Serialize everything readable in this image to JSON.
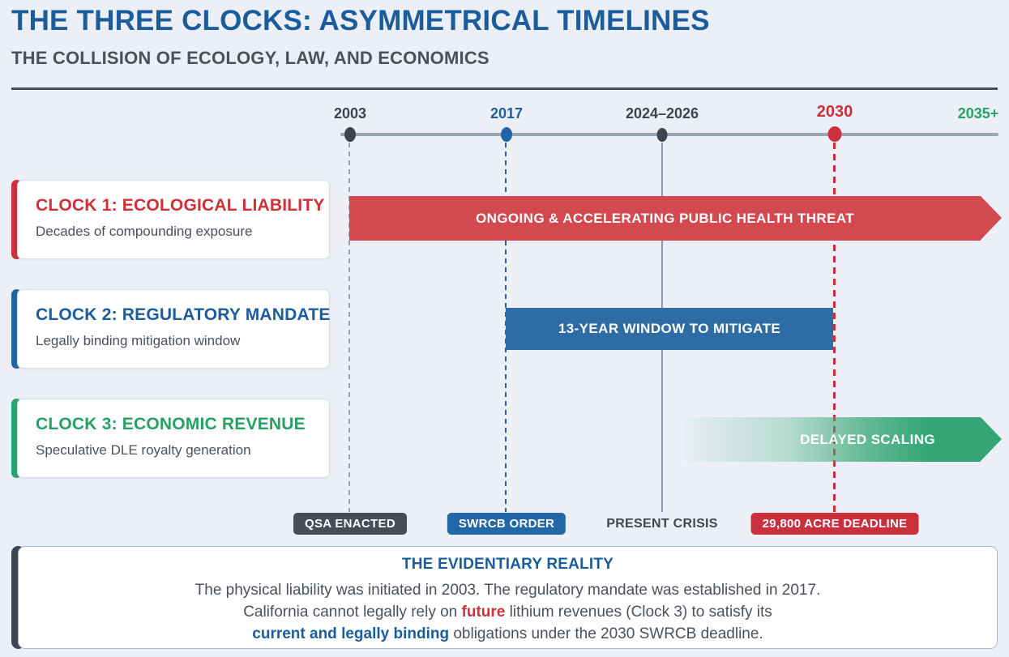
{
  "header": {
    "title": "THE THREE CLOCKS: ASYMMETRICAL TIMELINES",
    "subtitle": "THE COLLISION OF ECOLOGY, LAW, AND ECONOMICS"
  },
  "timeline": {
    "ticks": [
      {
        "label": "2003",
        "color": "#3e4551"
      },
      {
        "label": "2017",
        "color": "#1f5f9e"
      },
      {
        "label": "2024–2026",
        "color": "#3e4551"
      },
      {
        "label": "2030",
        "color": "#c9303c"
      },
      {
        "label": "2035+",
        "color": "#27a065"
      }
    ]
  },
  "clocks": [
    {
      "title": "CLOCK 1: ECOLOGICAL LIABILITY",
      "subtitle": "Decades of compounding exposure",
      "bar_label": "ONGOING & ACCELERATING PUBLIC HEALTH THREAT",
      "color": "#cf3038",
      "bar_color": "#d4494f"
    },
    {
      "title": "CLOCK 2: REGULATORY MANDATE",
      "subtitle": "Legally binding mitigation window",
      "bar_label": "13-YEAR WINDOW TO MITIGATE",
      "color": "#1a5c9c",
      "bar_color": "#2d6ca4"
    },
    {
      "title": "CLOCK 3: ECONOMIC REVENUE",
      "subtitle": "Speculative DLE royalty generation",
      "bar_label": "DELAYED SCALING",
      "color": "#27a065",
      "bar_color": "#35a577"
    }
  ],
  "milestones": [
    {
      "label": "QSA ENACTED",
      "style": "dark",
      "color": "#474d57"
    },
    {
      "label": "SWRCB ORDER",
      "style": "blue",
      "color": "#2268a6"
    },
    {
      "label": "PRESENT CRISIS",
      "style": "plain",
      "color": "#3f4652"
    },
    {
      "label": "29,800 ACRE DEADLINE",
      "style": "red",
      "color": "#c9303c"
    }
  ],
  "evidence_box": {
    "title": "THE EVIDENTIARY REALITY",
    "line1": "The physical liability was initiated in 2003. The regulatory mandate was established in 2017.",
    "line2_pre": "California cannot legally rely on ",
    "line2_highlight": "future",
    "line2_post": " lithium revenues (Clock 3) to satisfy its",
    "line3_highlight": "current and legally binding",
    "line3_post": " obligations under the 2030 SWRCB deadline."
  },
  "colors": {
    "background": "#ecf0f6",
    "title_blue": "#1a5c9c",
    "dark_slate": "#454c59",
    "axis_gray": "#9aa6b6",
    "red": "#c9303c",
    "blue": "#2166a3",
    "green": "#2ea26e"
  }
}
